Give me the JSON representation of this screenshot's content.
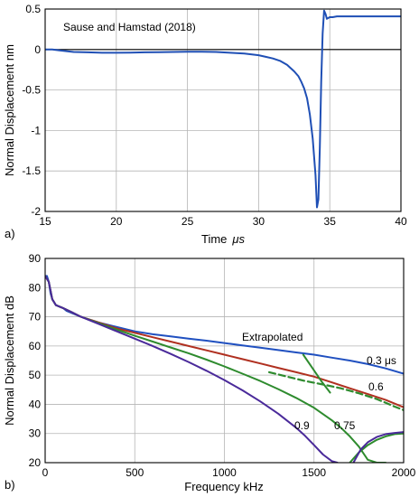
{
  "chart_data": [
    {
      "type": "line",
      "panel": "a)",
      "title": "",
      "annotation": "Sause and Hamstad (2018)",
      "xlabel": "Time",
      "xlabel_unit": "μs",
      "ylabel": "Normal Displacement  nm",
      "xlim": [
        15,
        40
      ],
      "ylim": [
        -2,
        0.5
      ],
      "xticks": [
        "15",
        "20",
        "25",
        "30",
        "35",
        "40"
      ],
      "yticks": [
        "0.5",
        "0",
        "-0.5",
        "-1",
        "-1.5",
        "-2"
      ],
      "grid": true,
      "zero_line": true,
      "series": [
        {
          "color": "#1f4fb5",
          "x": [
            15,
            15.5,
            16,
            16.5,
            17,
            18,
            19,
            20,
            21,
            22,
            23,
            24,
            25,
            26,
            27,
            28,
            29,
            30,
            30.5,
            31,
            31.5,
            32,
            32.5,
            32.8,
            33,
            33.2,
            33.4,
            33.6,
            33.8,
            34,
            34.1,
            34.2,
            34.3,
            34.4,
            34.5,
            34.6,
            34.7,
            34.8,
            34.9,
            35,
            35.2,
            35.5,
            36,
            37,
            38,
            39,
            40
          ],
          "y": [
            0,
            0,
            -0.01,
            -0.02,
            -0.03,
            -0.035,
            -0.04,
            -0.04,
            -0.038,
            -0.035,
            -0.033,
            -0.03,
            -0.028,
            -0.027,
            -0.03,
            -0.04,
            -0.05,
            -0.07,
            -0.09,
            -0.11,
            -0.14,
            -0.19,
            -0.27,
            -0.33,
            -0.4,
            -0.48,
            -0.6,
            -0.8,
            -1.1,
            -1.55,
            -1.95,
            -1.85,
            -1.2,
            -0.4,
            0.2,
            0.48,
            0.44,
            0.38,
            0.39,
            0.4,
            0.4,
            0.41,
            0.41,
            0.41,
            0.41,
            0.41,
            0.41
          ]
        }
      ]
    },
    {
      "type": "line",
      "panel": "b)",
      "title": "",
      "xlabel": "Frequency  kHz",
      "ylabel": "Normal Displacement  dB",
      "xlim": [
        0,
        2000
      ],
      "ylim": [
        20,
        90
      ],
      "xticks": [
        "0",
        "500",
        "1000",
        "1500",
        "2000"
      ],
      "yticks": [
        "90",
        "80",
        "70",
        "60",
        "50",
        "40",
        "30",
        "20"
      ],
      "grid": true,
      "annotations": [
        {
          "text": "Extrapolated",
          "color": "#2e8b2e"
        },
        {
          "text": "0.3 μs",
          "color": "#1f3f9f"
        },
        {
          "text": "0.6",
          "color": "#b03020"
        },
        {
          "text": "0.75",
          "color": "#2e8b2e"
        },
        {
          "text": "0.9",
          "color": "#8a2ab5"
        }
      ],
      "series": [
        {
          "color": "#2050c0",
          "label": "0.3 μs",
          "x": [
            0,
            10,
            20,
            30,
            40,
            50,
            60,
            80,
            100,
            120,
            140,
            160,
            180,
            200,
            250,
            300,
            400,
            500,
            600,
            700,
            800,
            900,
            1000,
            1100,
            1200,
            1300,
            1400,
            1500,
            1600,
            1700,
            1800,
            1900,
            2000
          ],
          "y": [
            84,
            84,
            82,
            78,
            76,
            75,
            74,
            73.5,
            73,
            72,
            71.5,
            71,
            70.5,
            70,
            69,
            68,
            66.5,
            65,
            64,
            63.3,
            62.5,
            61.8,
            61,
            60.2,
            59.4,
            58.6,
            57.8,
            57,
            56,
            55,
            53.8,
            52.3,
            50.5
          ]
        },
        {
          "color": "#b03020",
          "label": "0.6",
          "x": [
            0,
            20,
            40,
            60,
            100,
            150,
            200,
            300,
            400,
            500,
            600,
            700,
            800,
            900,
            1000,
            1100,
            1200,
            1300,
            1400,
            1500,
            1600,
            1700,
            1800,
            1900,
            2000
          ],
          "y": [
            84,
            82,
            76,
            74,
            73,
            71.5,
            70,
            68,
            66,
            64.5,
            63,
            61.5,
            60,
            58.5,
            57,
            55.5,
            54,
            52.5,
            51,
            49.5,
            47.5,
            45.5,
            43.5,
            41.5,
            39
          ]
        },
        {
          "color": "#2e8b2e",
          "label": "0.75",
          "x": [
            0,
            20,
            40,
            60,
            100,
            150,
            200,
            300,
            400,
            500,
            600,
            700,
            800,
            900,
            1000,
            1100,
            1200,
            1300,
            1400,
            1500,
            1600,
            1650,
            1700,
            1750,
            1800,
            1850,
            1900
          ],
          "y": [
            84,
            82,
            76,
            74,
            73,
            71.5,
            70,
            67.8,
            65.6,
            63.5,
            61.5,
            59.5,
            57.5,
            55.3,
            53,
            50.5,
            48,
            45.2,
            42.2,
            38.8,
            34.5,
            32,
            29,
            25.5,
            21,
            20,
            20
          ]
        },
        {
          "color": "#2e8b2e",
          "label": "0.75 continuation",
          "x": [
            1700,
            1750,
            1800,
            1850,
            1900,
            1950,
            2000
          ],
          "y": [
            20,
            23.5,
            26,
            27.8,
            29,
            29.8,
            30
          ]
        },
        {
          "color": "#2e8b2e",
          "dashed": true,
          "label": "Extrapolated",
          "x": [
            1250,
            1350,
            1450,
            1550,
            1650,
            1750,
            1850,
            1950,
            2000
          ],
          "y": [
            51,
            49.5,
            48,
            46.8,
            45.5,
            43.8,
            41.8,
            39.2,
            38
          ]
        },
        {
          "color": "#2e8b2e",
          "label": "Extrapolated pointer",
          "x": [
            1440,
            1490,
            1540,
            1590
          ],
          "y": [
            57,
            52.5,
            48,
            44
          ]
        },
        {
          "color": "#4a2a9a",
          "label": "0.9",
          "x": [
            0,
            20,
            40,
            60,
            100,
            150,
            200,
            300,
            400,
            500,
            600,
            700,
            800,
            900,
            1000,
            1100,
            1200,
            1300,
            1400,
            1450,
            1500,
            1550,
            1600,
            1630
          ],
          "y": [
            84,
            82,
            76,
            74,
            73,
            71.5,
            70,
            67.5,
            65,
            62.5,
            60,
            57.3,
            54.5,
            51.5,
            48.3,
            44.8,
            41,
            36.8,
            32,
            29.2,
            26,
            22.8,
            20.5,
            20
          ]
        },
        {
          "color": "#4a2a9a",
          "label": "0.9 continuation",
          "x": [
            1720,
            1760,
            1800,
            1850,
            1900,
            1950,
            2000
          ],
          "y": [
            20,
            24.5,
            27,
            28.8,
            29.8,
            30.2,
            30.5
          ]
        }
      ]
    }
  ]
}
